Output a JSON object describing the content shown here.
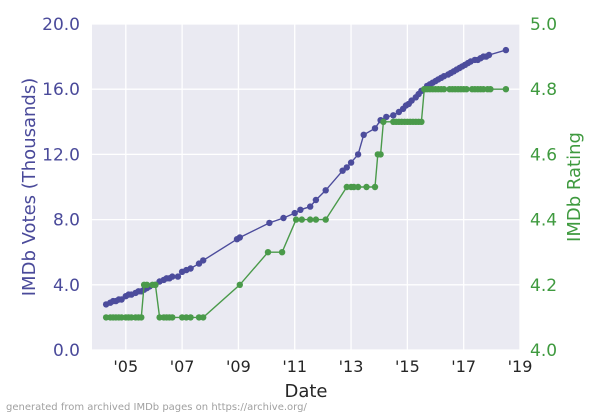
{
  "chart_data": {
    "type": "line",
    "xlabel": "Date",
    "ylabel_left": "IMDb Votes (Thousands)",
    "ylabel_right": "IMDb Rating",
    "x_ticks": [
      {
        "label": "'05",
        "value": 2005.0
      },
      {
        "label": "'07",
        "value": 2007.0
      },
      {
        "label": "'09",
        "value": 2009.0
      },
      {
        "label": "'11",
        "value": 2011.0
      },
      {
        "label": "'13",
        "value": 2013.0
      },
      {
        "label": "'15",
        "value": 2015.0
      },
      {
        "label": "'17",
        "value": 2017.0
      },
      {
        "label": "'19",
        "value": 2019.0
      }
    ],
    "xlim": [
      2003.8,
      2019.0
    ],
    "ylim_left": [
      0,
      20
    ],
    "ylim_right": [
      4.0,
      5.0
    ],
    "left_ticks": [
      "0.0",
      "4.0",
      "8.0",
      "12.0",
      "16.0",
      "20.0"
    ],
    "right_ticks": [
      "4.0",
      "4.2",
      "4.4",
      "4.6",
      "4.8",
      "5.0"
    ],
    "grid": true,
    "colors": {
      "votes": "#4c4c9c",
      "rating": "#4a9a4a",
      "background": "#eaeaf2"
    },
    "series": [
      {
        "axis": "left",
        "x": [
          2004.3,
          2004.45,
          2004.55,
          2004.65,
          2004.75,
          2004.85,
          2005.0,
          2005.1,
          2005.2,
          2005.35,
          2005.45,
          2005.55,
          2005.65,
          2005.75,
          2005.85,
          2006.05,
          2006.2,
          2006.35,
          2006.45,
          2006.55,
          2006.65,
          2006.85,
          2007.0,
          2007.15,
          2007.3,
          2007.6,
          2007.75,
          2008.95,
          2009.05,
          2010.1,
          2010.6,
          2011.0,
          2011.2,
          2011.55,
          2011.75,
          2012.1,
          2012.7,
          2012.85,
          2013.0,
          2013.25,
          2013.45,
          2013.85,
          2014.05,
          2014.25,
          2014.5,
          2014.7,
          2014.85,
          2014.95,
          2015.05,
          2015.15,
          2015.3,
          2015.4,
          2015.5,
          2015.6,
          2015.7,
          2015.8,
          2015.9,
          2016.0,
          2016.1,
          2016.2,
          2016.3,
          2016.45,
          2016.55,
          2016.65,
          2016.75,
          2016.85,
          2016.95,
          2017.05,
          2017.15,
          2017.25,
          2017.4,
          2017.5,
          2017.6,
          2017.7,
          2017.8,
          2017.9,
          2018.5
        ],
        "y": [
          2.8,
          2.9,
          3.0,
          3.0,
          3.1,
          3.1,
          3.3,
          3.4,
          3.4,
          3.5,
          3.6,
          3.6,
          3.7,
          3.8,
          3.9,
          4.0,
          4.2,
          4.3,
          4.4,
          4.4,
          4.5,
          4.5,
          4.8,
          4.9,
          5.0,
          5.3,
          5.5,
          6.8,
          6.9,
          7.8,
          8.1,
          8.4,
          8.6,
          8.8,
          9.2,
          9.8,
          11.0,
          11.2,
          11.5,
          12.0,
          13.2,
          13.6,
          14.1,
          14.3,
          14.4,
          14.6,
          14.8,
          15.0,
          15.1,
          15.3,
          15.5,
          15.7,
          15.9,
          16.0,
          16.2,
          16.3,
          16.4,
          16.5,
          16.6,
          16.7,
          16.8,
          16.9,
          17.0,
          17.1,
          17.2,
          17.3,
          17.4,
          17.5,
          17.6,
          17.7,
          17.8,
          17.8,
          17.9,
          18.0,
          18.0,
          18.1,
          18.4
        ]
      },
      {
        "axis": "right",
        "x": [
          2004.3,
          2004.45,
          2004.55,
          2004.65,
          2004.75,
          2004.85,
          2005.0,
          2005.1,
          2005.2,
          2005.35,
          2005.45,
          2005.55,
          2005.65,
          2005.75,
          2005.95,
          2006.05,
          2006.2,
          2006.35,
          2006.45,
          2006.55,
          2006.65,
          2007.0,
          2007.15,
          2007.3,
          2007.6,
          2007.75,
          2009.05,
          2010.05,
          2010.55,
          2011.05,
          2011.25,
          2011.55,
          2011.75,
          2012.1,
          2012.85,
          2013.0,
          2013.1,
          2013.25,
          2013.55,
          2013.85,
          2013.95,
          2014.05,
          2014.15,
          2014.5,
          2014.6,
          2014.7,
          2014.8,
          2014.9,
          2015.0,
          2015.1,
          2015.2,
          2015.3,
          2015.4,
          2015.5,
          2015.6,
          2015.7,
          2015.8,
          2015.9,
          2016.0,
          2016.1,
          2016.2,
          2016.3,
          2016.5,
          2016.6,
          2016.7,
          2016.8,
          2016.9,
          2017.0,
          2017.1,
          2017.3,
          2017.4,
          2017.5,
          2017.6,
          2017.7,
          2017.85,
          2017.95,
          2018.5
        ],
        "y": [
          4.1,
          4.1,
          4.1,
          4.1,
          4.1,
          4.1,
          4.1,
          4.1,
          4.1,
          4.1,
          4.1,
          4.1,
          4.2,
          4.2,
          4.2,
          4.2,
          4.1,
          4.1,
          4.1,
          4.1,
          4.1,
          4.1,
          4.1,
          4.1,
          4.1,
          4.1,
          4.2,
          4.3,
          4.3,
          4.4,
          4.4,
          4.4,
          4.4,
          4.4,
          4.5,
          4.5,
          4.5,
          4.5,
          4.5,
          4.5,
          4.6,
          4.6,
          4.7,
          4.7,
          4.7,
          4.7,
          4.7,
          4.7,
          4.7,
          4.7,
          4.7,
          4.7,
          4.7,
          4.7,
          4.8,
          4.8,
          4.8,
          4.8,
          4.8,
          4.8,
          4.8,
          4.8,
          4.8,
          4.8,
          4.8,
          4.8,
          4.8,
          4.8,
          4.8,
          4.8,
          4.8,
          4.8,
          4.8,
          4.8,
          4.8,
          4.8,
          4.8
        ]
      }
    ]
  },
  "footnote": "generated from archived IMDb pages on https://archive.org/"
}
